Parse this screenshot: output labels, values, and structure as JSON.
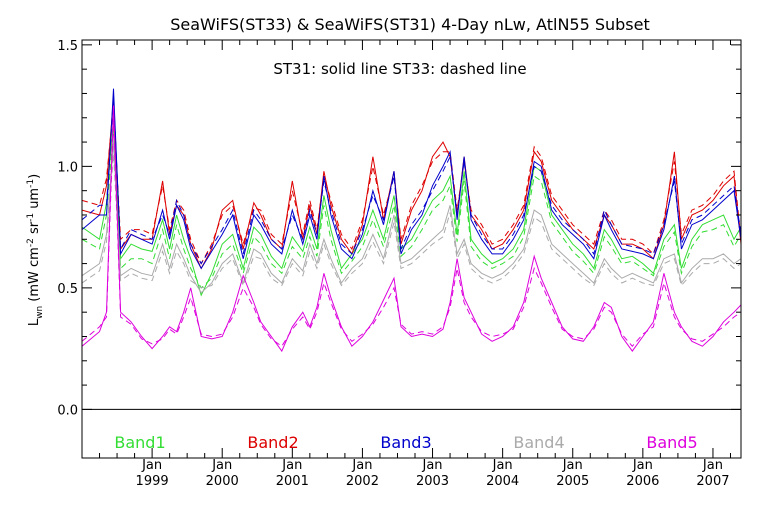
{
  "chart_data": {
    "type": "line",
    "title": "SeaWiFS(ST33) & SeaWiFS(ST31) 4-Day nLw, AtlN55 Subset",
    "subtitle": "ST31: solid line   ST33: dashed line",
    "ylabel": {
      "main": "L",
      "sub": "wn",
      "units": "(mW cm",
      "exp1": "-2",
      "mid": " sr",
      "exp2": "-1",
      "end": " um",
      "exp3": "-1",
      "close": ")"
    },
    "xlim": [
      1998.0,
      2007.4
    ],
    "ylim": [
      -0.2,
      1.52
    ],
    "y_ticks": [
      0.0,
      0.5,
      1.0,
      1.5
    ],
    "y_tick_labels": [
      "0.0",
      "0.5",
      "1.0",
      "1.5"
    ],
    "x_tick_top": "Jan",
    "x_tick_labels": [
      "1999",
      "2000",
      "2001",
      "2002",
      "2003",
      "2004",
      "2005",
      "2006",
      "2007"
    ],
    "x_ticks": [
      1999,
      2000,
      2001,
      2002,
      2003,
      2004,
      2005,
      2006,
      2007
    ],
    "zero_line": 0.0,
    "grid": false,
    "x": [
      1998.0,
      1998.25,
      1998.35,
      1998.45,
      1998.55,
      1998.7,
      1998.85,
      1999.0,
      1999.15,
      1999.25,
      1999.35,
      1999.45,
      1999.55,
      1999.7,
      1999.85,
      2000.0,
      2000.15,
      2000.3,
      2000.45,
      2000.55,
      2000.7,
      2000.85,
      2001.0,
      2001.15,
      2001.25,
      2001.35,
      2001.45,
      2001.55,
      2001.7,
      2001.85,
      2002.0,
      2002.15,
      2002.3,
      2002.45,
      2002.55,
      2002.7,
      2002.85,
      2003.0,
      2003.15,
      2003.25,
      2003.35,
      2003.45,
      2003.55,
      2003.7,
      2003.85,
      2004.0,
      2004.15,
      2004.3,
      2004.45,
      2004.55,
      2004.7,
      2004.85,
      2005.0,
      2005.15,
      2005.3,
      2005.45,
      2005.55,
      2005.7,
      2005.85,
      2006.0,
      2006.15,
      2006.3,
      2006.45,
      2006.55,
      2006.7,
      2006.85,
      2007.0,
      2007.15,
      2007.3,
      2007.4
    ],
    "series": [
      {
        "name": "Band1",
        "color": "#33dd33",
        "solid": [
          0.75,
          0.7,
          0.85,
          1.2,
          0.62,
          0.68,
          0.66,
          0.65,
          0.78,
          0.66,
          0.8,
          0.7,
          0.62,
          0.47,
          0.56,
          0.68,
          0.72,
          0.58,
          0.75,
          0.72,
          0.63,
          0.58,
          0.71,
          0.65,
          0.75,
          0.66,
          0.88,
          0.74,
          0.58,
          0.64,
          0.7,
          0.82,
          0.7,
          0.88,
          0.66,
          0.7,
          0.78,
          0.86,
          0.9,
          0.96,
          0.72,
          0.98,
          0.7,
          0.64,
          0.6,
          0.62,
          0.66,
          0.74,
          1.0,
          0.98,
          0.8,
          0.74,
          0.68,
          0.64,
          0.58,
          0.74,
          0.7,
          0.62,
          0.63,
          0.6,
          0.56,
          0.7,
          0.76,
          0.58,
          0.7,
          0.76,
          0.78,
          0.8,
          0.7,
          0.75
        ],
        "dashed": [
          0.7,
          0.66,
          0.8,
          1.15,
          0.58,
          0.62,
          0.62,
          0.6,
          0.74,
          0.62,
          0.76,
          0.66,
          0.58,
          0.5,
          0.54,
          0.64,
          0.68,
          0.56,
          0.71,
          0.68,
          0.6,
          0.56,
          0.67,
          0.62,
          0.71,
          0.63,
          0.84,
          0.7,
          0.56,
          0.61,
          0.67,
          0.78,
          0.67,
          0.84,
          0.63,
          0.67,
          0.74,
          0.82,
          0.86,
          0.92,
          0.69,
          0.94,
          0.67,
          0.61,
          0.58,
          0.6,
          0.63,
          0.71,
          0.96,
          0.94,
          0.77,
          0.71,
          0.65,
          0.61,
          0.56,
          0.71,
          0.67,
          0.6,
          0.61,
          0.58,
          0.55,
          0.67,
          0.73,
          0.56,
          0.67,
          0.73,
          0.74,
          0.76,
          0.67,
          0.72
        ]
      },
      {
        "name": "Band2",
        "color": "#dd0000",
        "solid": [
          0.82,
          0.8,
          0.92,
          1.28,
          0.66,
          0.72,
          0.7,
          0.7,
          0.94,
          0.72,
          0.84,
          0.8,
          0.68,
          0.58,
          0.66,
          0.82,
          0.86,
          0.66,
          0.85,
          0.8,
          0.7,
          0.66,
          0.94,
          0.7,
          0.84,
          0.72,
          0.98,
          0.84,
          0.7,
          0.64,
          0.76,
          1.04,
          0.78,
          0.98,
          0.68,
          0.82,
          0.9,
          1.04,
          1.1,
          1.04,
          0.8,
          1.04,
          0.8,
          0.74,
          0.66,
          0.68,
          0.74,
          0.82,
          1.06,
          1.02,
          0.86,
          0.8,
          0.74,
          0.7,
          0.66,
          0.8,
          0.76,
          0.68,
          0.68,
          0.66,
          0.62,
          0.76,
          1.06,
          0.7,
          0.8,
          0.82,
          0.86,
          0.92,
          0.96,
          0.68
        ],
        "dashed": [
          0.86,
          0.84,
          0.95,
          1.25,
          0.7,
          0.74,
          0.74,
          0.72,
          0.92,
          0.74,
          0.86,
          0.82,
          0.7,
          0.6,
          0.68,
          0.8,
          0.84,
          0.68,
          0.83,
          0.82,
          0.72,
          0.68,
          0.9,
          0.72,
          0.86,
          0.74,
          0.96,
          0.86,
          0.72,
          0.66,
          0.78,
          1.0,
          0.8,
          0.96,
          0.7,
          0.84,
          0.92,
          1.02,
          1.06,
          1.06,
          0.82,
          1.02,
          0.82,
          0.76,
          0.68,
          0.7,
          0.76,
          0.84,
          1.08,
          1.04,
          0.88,
          0.82,
          0.76,
          0.72,
          0.68,
          0.82,
          0.78,
          0.7,
          0.7,
          0.68,
          0.64,
          0.78,
          1.02,
          0.72,
          0.82,
          0.84,
          0.88,
          0.94,
          0.98,
          0.7
        ]
      },
      {
        "name": "Band3",
        "color": "#0000cc",
        "solid": [
          0.74,
          0.8,
          0.8,
          1.32,
          0.64,
          0.72,
          0.7,
          0.68,
          0.82,
          0.7,
          0.84,
          0.78,
          0.66,
          0.58,
          0.65,
          0.72,
          0.8,
          0.62,
          0.8,
          0.76,
          0.68,
          0.64,
          0.82,
          0.68,
          0.8,
          0.7,
          0.96,
          0.8,
          0.66,
          0.62,
          0.72,
          0.9,
          0.76,
          0.98,
          0.64,
          0.74,
          0.8,
          0.92,
          1.0,
          1.06,
          0.78,
          1.04,
          0.78,
          0.7,
          0.64,
          0.64,
          0.7,
          0.78,
          1.02,
          1.0,
          0.82,
          0.76,
          0.72,
          0.68,
          0.62,
          0.8,
          0.74,
          0.66,
          0.65,
          0.64,
          0.62,
          0.74,
          0.96,
          0.66,
          0.76,
          0.78,
          0.82,
          0.86,
          0.9,
          0.7
        ],
        "dashed": [
          0.78,
          0.84,
          0.84,
          1.28,
          0.66,
          0.74,
          0.72,
          0.7,
          0.8,
          0.72,
          0.86,
          0.8,
          0.68,
          0.6,
          0.67,
          0.74,
          0.82,
          0.64,
          0.82,
          0.78,
          0.7,
          0.66,
          0.8,
          0.7,
          0.82,
          0.72,
          0.94,
          0.82,
          0.68,
          0.64,
          0.74,
          0.88,
          0.78,
          0.96,
          0.66,
          0.76,
          0.82,
          0.9,
          0.98,
          1.04,
          0.8,
          1.02,
          0.8,
          0.72,
          0.66,
          0.66,
          0.72,
          0.8,
          1.0,
          0.98,
          0.84,
          0.78,
          0.74,
          0.7,
          0.64,
          0.82,
          0.76,
          0.68,
          0.67,
          0.66,
          0.64,
          0.76,
          0.94,
          0.68,
          0.78,
          0.8,
          0.84,
          0.88,
          0.92,
          0.72
        ]
      },
      {
        "name": "Band4",
        "color": "#aaaaaa",
        "solid": [
          0.55,
          0.6,
          0.72,
          1.1,
          0.55,
          0.58,
          0.56,
          0.55,
          0.68,
          0.58,
          0.68,
          0.62,
          0.55,
          0.48,
          0.52,
          0.6,
          0.64,
          0.52,
          0.66,
          0.64,
          0.56,
          0.52,
          0.62,
          0.57,
          0.68,
          0.6,
          0.7,
          0.62,
          0.52,
          0.58,
          0.62,
          0.72,
          0.62,
          0.8,
          0.6,
          0.62,
          0.66,
          0.7,
          0.74,
          0.84,
          0.64,
          0.7,
          0.6,
          0.56,
          0.54,
          0.56,
          0.6,
          0.66,
          0.82,
          0.8,
          0.68,
          0.64,
          0.6,
          0.56,
          0.52,
          0.62,
          0.58,
          0.54,
          0.56,
          0.54,
          0.52,
          0.62,
          0.64,
          0.52,
          0.58,
          0.62,
          0.62,
          0.64,
          0.6,
          0.62
        ],
        "dashed": [
          0.52,
          0.57,
          0.69,
          1.05,
          0.53,
          0.56,
          0.54,
          0.53,
          0.65,
          0.56,
          0.65,
          0.6,
          0.53,
          0.5,
          0.51,
          0.58,
          0.62,
          0.51,
          0.63,
          0.62,
          0.54,
          0.51,
          0.6,
          0.55,
          0.65,
          0.58,
          0.68,
          0.6,
          0.51,
          0.56,
          0.6,
          0.69,
          0.6,
          0.77,
          0.58,
          0.6,
          0.64,
          0.68,
          0.71,
          0.81,
          0.62,
          0.68,
          0.58,
          0.54,
          0.52,
          0.54,
          0.58,
          0.64,
          0.79,
          0.77,
          0.66,
          0.62,
          0.58,
          0.54,
          0.51,
          0.6,
          0.56,
          0.52,
          0.54,
          0.52,
          0.51,
          0.6,
          0.62,
          0.51,
          0.56,
          0.6,
          0.6,
          0.62,
          0.58,
          0.6
        ]
      },
      {
        "name": "Band5",
        "color": "#dd00dd",
        "solid": [
          0.26,
          0.32,
          0.4,
          1.25,
          0.4,
          0.36,
          0.3,
          0.25,
          0.3,
          0.34,
          0.32,
          0.4,
          0.5,
          0.3,
          0.29,
          0.3,
          0.4,
          0.55,
          0.44,
          0.36,
          0.3,
          0.24,
          0.34,
          0.4,
          0.34,
          0.42,
          0.56,
          0.46,
          0.34,
          0.26,
          0.3,
          0.36,
          0.45,
          0.54,
          0.34,
          0.3,
          0.31,
          0.3,
          0.33,
          0.44,
          0.62,
          0.46,
          0.4,
          0.31,
          0.28,
          0.3,
          0.34,
          0.44,
          0.63,
          0.54,
          0.44,
          0.34,
          0.29,
          0.28,
          0.34,
          0.44,
          0.42,
          0.3,
          0.24,
          0.3,
          0.36,
          0.56,
          0.4,
          0.34,
          0.28,
          0.26,
          0.3,
          0.36,
          0.4,
          0.43
        ],
        "dashed": [
          0.28,
          0.34,
          0.38,
          1.2,
          0.38,
          0.35,
          0.29,
          0.27,
          0.29,
          0.33,
          0.31,
          0.38,
          0.46,
          0.31,
          0.3,
          0.31,
          0.38,
          0.5,
          0.42,
          0.35,
          0.29,
          0.26,
          0.33,
          0.38,
          0.33,
          0.4,
          0.52,
          0.44,
          0.33,
          0.28,
          0.31,
          0.35,
          0.42,
          0.5,
          0.35,
          0.31,
          0.32,
          0.31,
          0.34,
          0.42,
          0.58,
          0.44,
          0.38,
          0.32,
          0.3,
          0.31,
          0.33,
          0.42,
          0.58,
          0.52,
          0.42,
          0.33,
          0.3,
          0.29,
          0.33,
          0.42,
          0.4,
          0.31,
          0.26,
          0.31,
          0.34,
          0.52,
          0.38,
          0.33,
          0.29,
          0.28,
          0.31,
          0.34,
          0.38,
          0.4
        ]
      }
    ]
  }
}
